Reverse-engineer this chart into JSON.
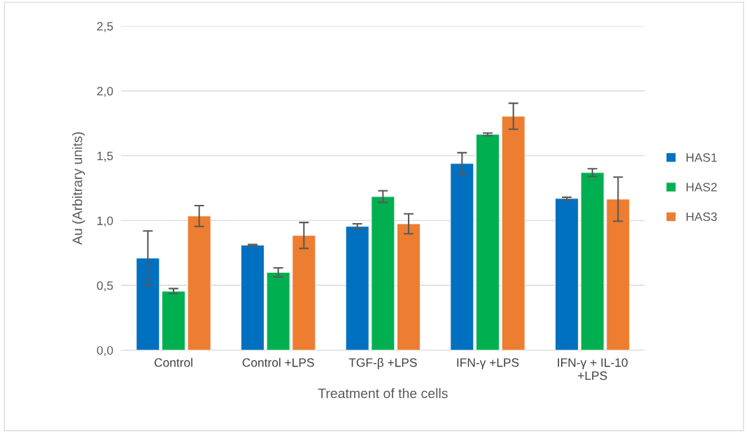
{
  "chart_data": {
    "type": "bar",
    "xlabel": "Treatment of the cells",
    "ylabel": "Au (Arbitrary units)",
    "categories": [
      "Control",
      "Control +LPS",
      "TGF-β +LPS",
      "IFN-γ +LPS",
      "IFN-γ + IL-10\n+LPS"
    ],
    "series": [
      {
        "name": "HAS1",
        "color": "#0070c0",
        "values": [
          0.71,
          0.81,
          0.955,
          1.44,
          1.17
        ],
        "errors": [
          0.21,
          0.005,
          0.02,
          0.083,
          0.01
        ]
      },
      {
        "name": "HAS2",
        "color": "#00b050",
        "values": [
          0.455,
          0.6,
          1.185,
          1.665,
          1.37
        ],
        "errors": [
          0.02,
          0.035,
          0.045,
          0.01,
          0.03
        ]
      },
      {
        "name": "HAS3",
        "color": "#ed7d31",
        "values": [
          1.035,
          0.885,
          0.975,
          1.805,
          1.165
        ],
        "errors": [
          0.08,
          0.1,
          0.077,
          0.1,
          0.17
        ]
      }
    ],
    "ylim": [
      0,
      2.5
    ],
    "yticks": [
      {
        "value": 0,
        "label": "0,0"
      },
      {
        "value": 0.5,
        "label": "0,5"
      },
      {
        "value": 1,
        "label": "1,0"
      },
      {
        "value": 1.5,
        "label": "1,5"
      },
      {
        "value": 2,
        "label": "2,0"
      },
      {
        "value": 2.5,
        "label": "2,5"
      }
    ],
    "grid": "y",
    "legend": "right"
  }
}
